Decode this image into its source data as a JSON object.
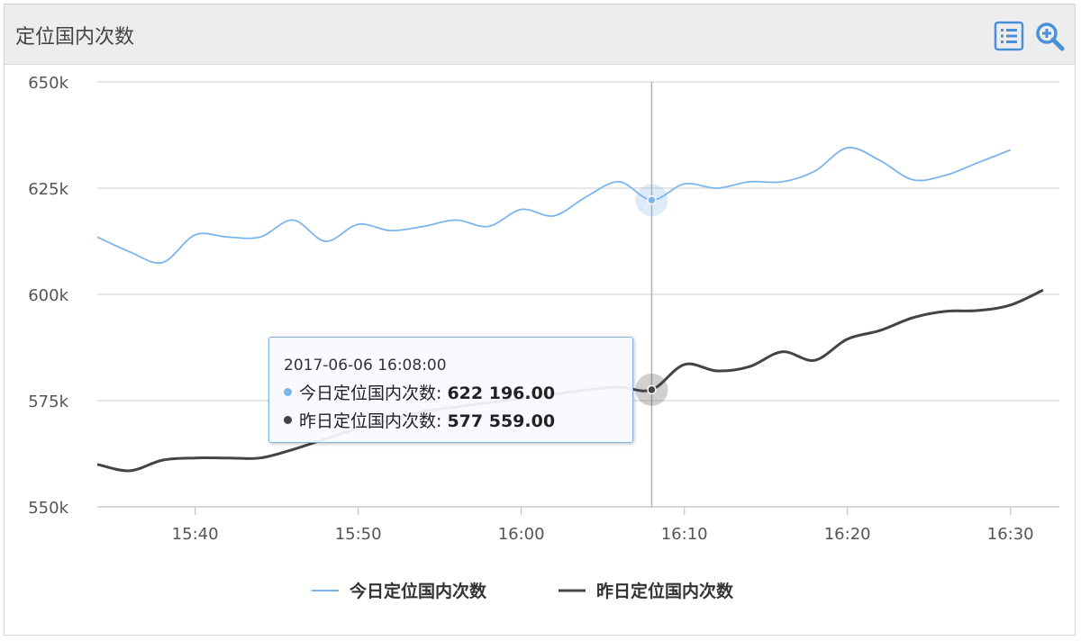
{
  "header": {
    "title": "定位国内次数",
    "data_view_icon": "list-icon",
    "zoom_icon": "zoom-in-icon"
  },
  "colors": {
    "today": "#7cb5ec",
    "yesterday": "#434348",
    "grid": "#d8d8d8",
    "crosshair": "#b0b0b0"
  },
  "chart_data": {
    "type": "line",
    "title": "",
    "xlabel": "",
    "ylabel": "",
    "x_axis_start": "15:34",
    "x_axis_end": "16:33",
    "ylim": [
      550000,
      650000
    ],
    "y_ticks": [
      550000,
      575000,
      600000,
      625000,
      650000
    ],
    "y_tick_labels": [
      "550k",
      "575k",
      "600k",
      "625k",
      "650k"
    ],
    "x_ticks": [
      "15:40",
      "15:50",
      "16:00",
      "16:10",
      "16:20",
      "16:30"
    ],
    "grid": true,
    "legend_position": "bottom",
    "series": [
      {
        "name": "今日定位国内次数",
        "color_key": "today",
        "points": [
          [
            "15:34",
            613500
          ],
          [
            "15:36",
            610000
          ],
          [
            "15:38",
            607500
          ],
          [
            "15:40",
            614000
          ],
          [
            "15:42",
            613500
          ],
          [
            "15:44",
            613500
          ],
          [
            "15:46",
            617500
          ],
          [
            "15:48",
            612500
          ],
          [
            "15:50",
            616500
          ],
          [
            "15:52",
            615000
          ],
          [
            "15:54",
            616000
          ],
          [
            "15:56",
            617500
          ],
          [
            "15:58",
            616000
          ],
          [
            "16:00",
            620000
          ],
          [
            "16:02",
            618500
          ],
          [
            "16:04",
            623000
          ],
          [
            "16:06",
            626500
          ],
          [
            "16:08",
            622196
          ],
          [
            "16:10",
            626000
          ],
          [
            "16:12",
            625000
          ],
          [
            "16:14",
            626500
          ],
          [
            "16:16",
            626500
          ],
          [
            "16:18",
            629000
          ],
          [
            "16:20",
            634500
          ],
          [
            "16:22",
            631500
          ],
          [
            "16:24",
            627000
          ],
          [
            "16:26",
            628000
          ],
          [
            "16:28",
            631000
          ],
          [
            "16:30",
            634000
          ]
        ]
      },
      {
        "name": "昨日定位国内次数",
        "color_key": "yesterday",
        "points": [
          [
            "15:34",
            560000
          ],
          [
            "15:36",
            558500
          ],
          [
            "15:38",
            561000
          ],
          [
            "15:40",
            561500
          ],
          [
            "15:42",
            561500
          ],
          [
            "15:44",
            561500
          ],
          [
            "15:46",
            563500
          ],
          [
            "15:48",
            566000
          ],
          [
            "15:50",
            568500
          ],
          [
            "15:52",
            570500
          ],
          [
            "15:54",
            572500
          ],
          [
            "15:56",
            573500
          ],
          [
            "15:58",
            574500
          ],
          [
            "16:00",
            575500
          ],
          [
            "16:02",
            576500
          ],
          [
            "16:04",
            577500
          ],
          [
            "16:06",
            578200
          ],
          [
            "16:08",
            577559
          ],
          [
            "16:10",
            583500
          ],
          [
            "16:12",
            582000
          ],
          [
            "16:14",
            583000
          ],
          [
            "16:16",
            586500
          ],
          [
            "16:18",
            584500
          ],
          [
            "16:20",
            589500
          ],
          [
            "16:22",
            591500
          ],
          [
            "16:24",
            594500
          ],
          [
            "16:26",
            596000
          ],
          [
            "16:28",
            596200
          ],
          [
            "16:30",
            597500
          ],
          [
            "16:32",
            601000
          ]
        ]
      }
    ],
    "tooltip": {
      "time": "2017-06-06 16:08:00",
      "crosshair_x": "16:08",
      "rows": [
        {
          "name": "今日定位国内次数:",
          "value": "622 196.00",
          "color_key": "today",
          "y": 622196
        },
        {
          "name": "昨日定位国内次数:",
          "value": "577 559.00",
          "color_key": "yesterday",
          "y": 577559
        }
      ]
    }
  }
}
